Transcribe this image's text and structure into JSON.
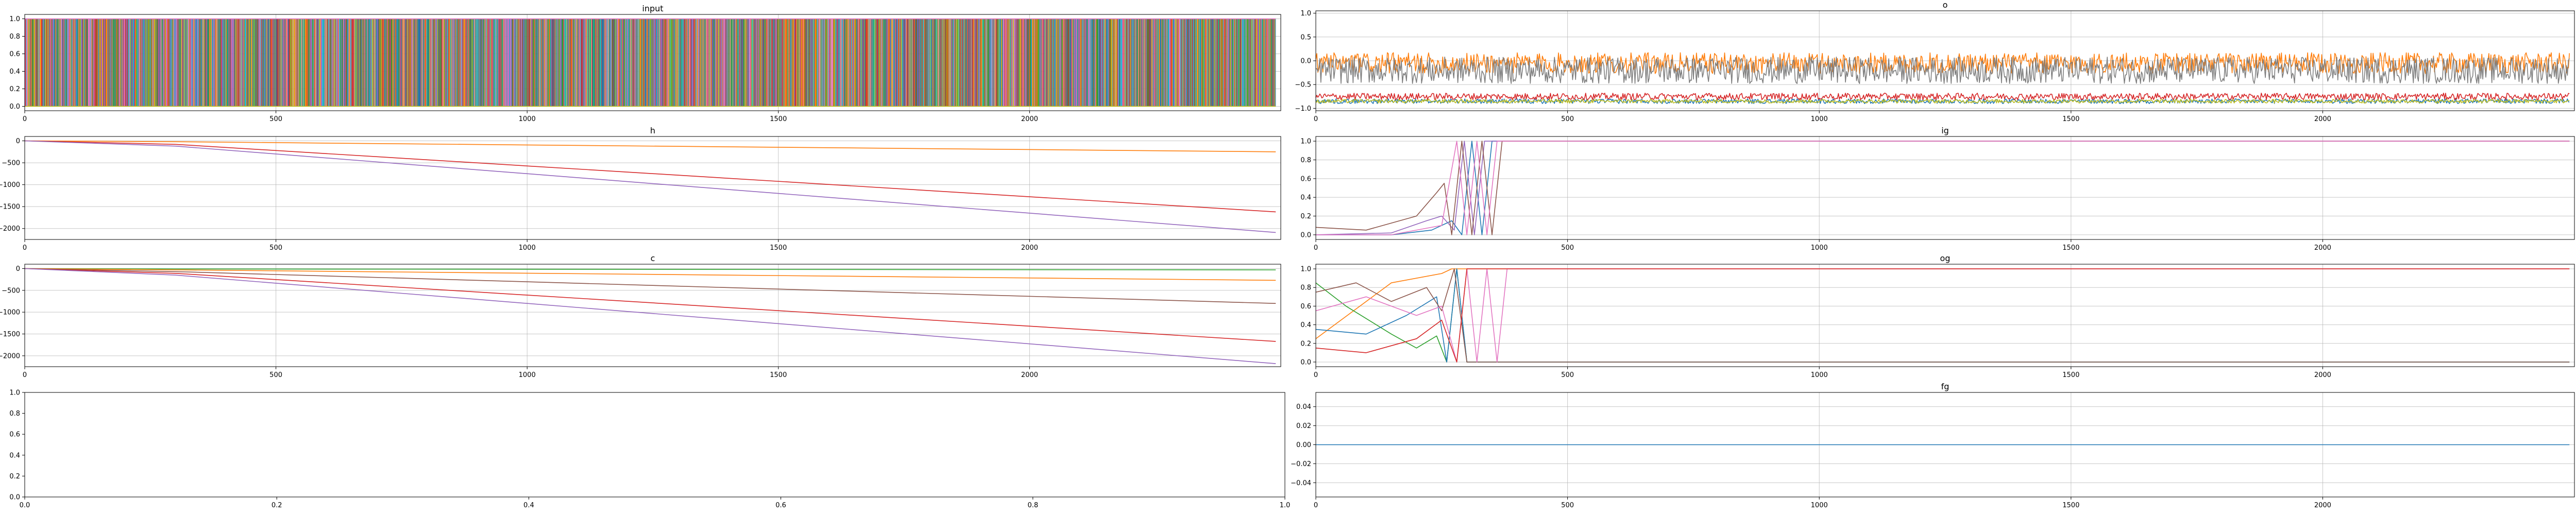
{
  "palette": [
    "#1f77b4",
    "#ff7f0e",
    "#2ca02c",
    "#d62728",
    "#9467bd",
    "#8c564b",
    "#e377c2",
    "#7f7f7f",
    "#bcbd22",
    "#17becf"
  ],
  "chart_data": [
    {
      "id": "input",
      "type": "line",
      "title": "input",
      "xlim": [
        0,
        2500
      ],
      "ylim": [
        -0.05,
        1.05
      ],
      "xticks": [
        0,
        500,
        1000,
        1500,
        2000
      ],
      "yticks": [
        0.0,
        0.2,
        0.4,
        0.6,
        0.8,
        1.0
      ],
      "ytick_labels": [
        "0.0",
        "0.2",
        "0.4",
        "0.6",
        "0.8",
        "1.0"
      ],
      "grid": true,
      "description_of_series": "many one-hot input channels switching between 0 and 1 at every step",
      "series": [
        {
          "color_index": 0,
          "x": [
            0,
            2490
          ],
          "values": [
            0,
            1
          ]
        }
      ]
    },
    {
      "id": "o",
      "type": "line",
      "title": "o",
      "xlim": [
        0,
        2500
      ],
      "ylim": [
        -1.05,
        1.05
      ],
      "xticks": [
        0,
        500,
        1000,
        1500,
        2000
      ],
      "yticks": [
        -1.0,
        -0.5,
        0.0,
        0.5,
        1.0
      ],
      "ytick_labels": [
        "−1.0",
        "−0.5",
        "0.0",
        "0.5",
        "1.0"
      ],
      "grid": true,
      "series": [
        {
          "color_index": 0,
          "x": [
            0,
            2490
          ],
          "values": [
            -0.85,
            -0.85
          ]
        },
        {
          "color_index": 1,
          "x": [
            0,
            2490
          ],
          "values": [
            -0.05,
            -0.05
          ]
        },
        {
          "color_index": 3,
          "x": [
            0,
            2490
          ],
          "values": [
            -0.75,
            -0.75
          ]
        },
        {
          "color_index": 7,
          "x": [
            0,
            2490
          ],
          "values": [
            -0.2,
            -0.2
          ]
        },
        {
          "color_index": 8,
          "x": [
            0,
            2490
          ],
          "values": [
            -0.85,
            -0.85
          ]
        }
      ]
    },
    {
      "id": "h",
      "type": "line",
      "title": "h",
      "xlim": [
        0,
        2500
      ],
      "ylim": [
        -2250,
        100
      ],
      "xticks": [
        0,
        500,
        1000,
        1500,
        2000
      ],
      "yticks": [
        0,
        -500,
        -1000,
        -1500,
        -2000
      ],
      "ytick_labels": [
        "0",
        "−500",
        "−1000",
        "−1500",
        "−2000"
      ],
      "grid": true,
      "series": [
        {
          "color_index": 1,
          "x": [
            0,
            300,
            2490
          ],
          "values": [
            0,
            -20,
            -250
          ]
        },
        {
          "color_index": 3,
          "x": [
            0,
            300,
            2490
          ],
          "values": [
            0,
            -80,
            -1620
          ]
        },
        {
          "color_index": 4,
          "x": [
            0,
            300,
            2490
          ],
          "values": [
            0,
            -120,
            -2090
          ]
        }
      ]
    },
    {
      "id": "ig",
      "type": "line",
      "title": "ig",
      "xlim": [
        0,
        2500
      ],
      "ylim": [
        -0.05,
        1.05
      ],
      "xticks": [
        0,
        500,
        1000,
        1500,
        2000
      ],
      "yticks": [
        0.0,
        0.2,
        0.4,
        0.6,
        0.8,
        1.0
      ],
      "ytick_labels": [
        "0.0",
        "0.2",
        "0.4",
        "0.6",
        "0.8",
        "1.0"
      ],
      "grid": true,
      "series": [
        {
          "color_index": 0,
          "x": [
            0,
            150,
            230,
            270,
            290,
            310,
            330,
            350,
            370,
            2490
          ],
          "values": [
            0.0,
            0.0,
            0.05,
            0.15,
            0.0,
            1.0,
            0.0,
            1.0,
            1.0,
            1.0
          ]
        },
        {
          "color_index": 4,
          "x": [
            0,
            150,
            220,
            250,
            275,
            295,
            315,
            335,
            360,
            2490
          ],
          "values": [
            0.0,
            0.02,
            0.15,
            0.2,
            0.05,
            1.0,
            0.0,
            1.0,
            1.0,
            1.0
          ]
        },
        {
          "color_index": 5,
          "x": [
            0,
            100,
            200,
            240,
            255,
            270,
            290,
            310,
            330,
            350,
            370,
            2490
          ],
          "values": [
            0.08,
            0.05,
            0.2,
            0.45,
            0.55,
            0.0,
            1.0,
            0.0,
            1.0,
            0.0,
            1.0,
            1.0
          ]
        },
        {
          "color_index": 6,
          "x": [
            0,
            150,
            250,
            280,
            300,
            320,
            340,
            360,
            380,
            2490
          ],
          "values": [
            0.0,
            0.0,
            0.1,
            1.0,
            0.0,
            1.0,
            0.0,
            1.0,
            1.0,
            1.0
          ]
        }
      ]
    },
    {
      "id": "c",
      "type": "line",
      "title": "c",
      "xlim": [
        0,
        2500
      ],
      "ylim": [
        -2250,
        100
      ],
      "xticks": [
        0,
        500,
        1000,
        1500,
        2000
      ],
      "yticks": [
        0,
        -500,
        -1000,
        -1500,
        -2000
      ],
      "ytick_labels": [
        "0",
        "−500",
        "−1000",
        "−1500",
        "−2000"
      ],
      "grid": true,
      "series": [
        {
          "color_index": 2,
          "x": [
            0,
            300,
            2490
          ],
          "values": [
            0,
            -10,
            -30
          ]
        },
        {
          "color_index": 1,
          "x": [
            0,
            300,
            2490
          ],
          "values": [
            0,
            -30,
            -270
          ]
        },
        {
          "color_index": 5,
          "x": [
            0,
            300,
            2490
          ],
          "values": [
            0,
            -70,
            -800
          ]
        },
        {
          "color_index": 3,
          "x": [
            0,
            300,
            2490
          ],
          "values": [
            0,
            -110,
            -1670
          ]
        },
        {
          "color_index": 4,
          "x": [
            0,
            300,
            2490
          ],
          "values": [
            0,
            -150,
            -2180
          ]
        }
      ]
    },
    {
      "id": "og",
      "type": "line",
      "title": "og",
      "xlim": [
        0,
        2500
      ],
      "ylim": [
        -0.05,
        1.05
      ],
      "xticks": [
        0,
        500,
        1000,
        1500,
        2000
      ],
      "yticks": [
        0.0,
        0.2,
        0.4,
        0.6,
        0.8,
        1.0
      ],
      "ytick_labels": [
        "0.0",
        "0.2",
        "0.4",
        "0.6",
        "0.8",
        "1.0"
      ],
      "grid": true,
      "series": [
        {
          "color_index": 1,
          "x": [
            0,
            50,
            150,
            250,
            270,
            2490
          ],
          "values": [
            0.25,
            0.45,
            0.85,
            0.95,
            1.0,
            1.0
          ]
        },
        {
          "color_index": 2,
          "x": [
            0,
            60,
            150,
            200,
            240,
            260,
            280,
            300,
            2490
          ],
          "values": [
            0.85,
            0.6,
            0.3,
            0.15,
            0.28,
            0.0,
            1.0,
            0.0,
            0.0
          ]
        },
        {
          "color_index": 0,
          "x": [
            0,
            100,
            180,
            240,
            260,
            280,
            300,
            2490
          ],
          "values": [
            0.35,
            0.3,
            0.5,
            0.7,
            0.0,
            1.0,
            0.0,
            0.0
          ]
        },
        {
          "color_index": 5,
          "x": [
            0,
            80,
            150,
            220,
            250,
            275,
            300,
            2490
          ],
          "values": [
            0.75,
            0.85,
            0.65,
            0.8,
            0.55,
            1.0,
            0.0,
            0.0
          ]
        },
        {
          "color_index": 6,
          "x": [
            0,
            100,
            200,
            250,
            280,
            300,
            320,
            340,
            360,
            380,
            2490
          ],
          "values": [
            0.55,
            0.7,
            0.5,
            0.6,
            0.0,
            1.0,
            0.0,
            1.0,
            0.0,
            1.0,
            1.0
          ]
        },
        {
          "color_index": 3,
          "x": [
            0,
            100,
            200,
            250,
            280,
            300,
            2490
          ],
          "values": [
            0.15,
            0.1,
            0.25,
            0.45,
            0.0,
            1.0,
            1.0
          ]
        }
      ]
    },
    {
      "id": "empty",
      "type": "line",
      "title": "",
      "xlim": [
        0.0,
        1.0
      ],
      "ylim": [
        0.0,
        1.0
      ],
      "xticks": [
        0.0,
        0.2,
        0.4,
        0.6,
        0.8,
        1.0
      ],
      "xtick_labels": [
        "0.0",
        "0.2",
        "0.4",
        "0.6",
        "0.8",
        "1.0"
      ],
      "yticks": [
        0.0,
        0.2,
        0.4,
        0.6,
        0.8,
        1.0
      ],
      "ytick_labels": [
        "0.0",
        "0.2",
        "0.4",
        "0.6",
        "0.8",
        "1.0"
      ],
      "grid": false,
      "series": []
    },
    {
      "id": "fg",
      "type": "line",
      "title": "fg",
      "xlim": [
        0,
        2500
      ],
      "ylim": [
        -0.055,
        0.055
      ],
      "xticks": [
        0,
        500,
        1000,
        1500,
        2000
      ],
      "yticks": [
        0.04,
        0.02,
        0.0,
        -0.02,
        -0.04
      ],
      "ytick_labels": [
        "0.04",
        "0.02",
        "0.00",
        "−0.02",
        "−0.04"
      ],
      "grid": true,
      "series": [
        {
          "color_index": 0,
          "x": [
            0,
            2490
          ],
          "values": [
            0.0,
            0.0
          ]
        }
      ]
    }
  ]
}
